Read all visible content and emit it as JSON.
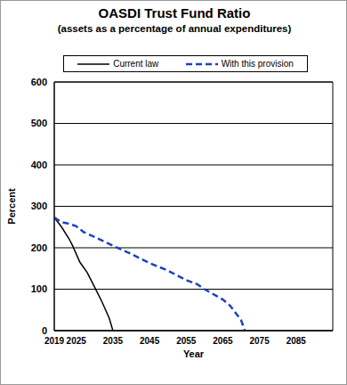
{
  "chart_data": {
    "type": "line",
    "title": "OASDI Trust Fund Ratio",
    "subtitle": "(assets as a percentage of annual expenditures)",
    "x_label": "Year",
    "y_label": "Percent",
    "xlim": [
      2019,
      2095
    ],
    "xticks": [
      2019,
      2025,
      2035,
      2045,
      2055,
      2065,
      2075,
      2085
    ],
    "ylim": [
      0,
      600
    ],
    "yticks": [
      0,
      100,
      200,
      300,
      400,
      500,
      600
    ],
    "grid": true,
    "legend": "top",
    "series": [
      {
        "name": "Current law",
        "color": "#000000",
        "line_style": "solid",
        "x": [
          2019,
          2021,
          2023,
          2024,
          2026,
          2028,
          2030,
          2032,
          2034,
          2035
        ],
        "values": [
          273,
          250,
          222,
          205,
          165,
          140,
          105,
          70,
          30,
          0
        ]
      },
      {
        "name": "With this provision",
        "color": "#2040c0",
        "line_style": "dashed",
        "x": [
          2019,
          2021,
          2023,
          2025,
          2027,
          2030,
          2035,
          2040,
          2045,
          2050,
          2055,
          2058,
          2060,
          2065,
          2067,
          2070,
          2071
        ],
        "values": [
          273,
          262,
          258,
          252,
          238,
          226,
          205,
          185,
          163,
          145,
          122,
          112,
          100,
          75,
          60,
          25,
          0
        ]
      }
    ]
  }
}
